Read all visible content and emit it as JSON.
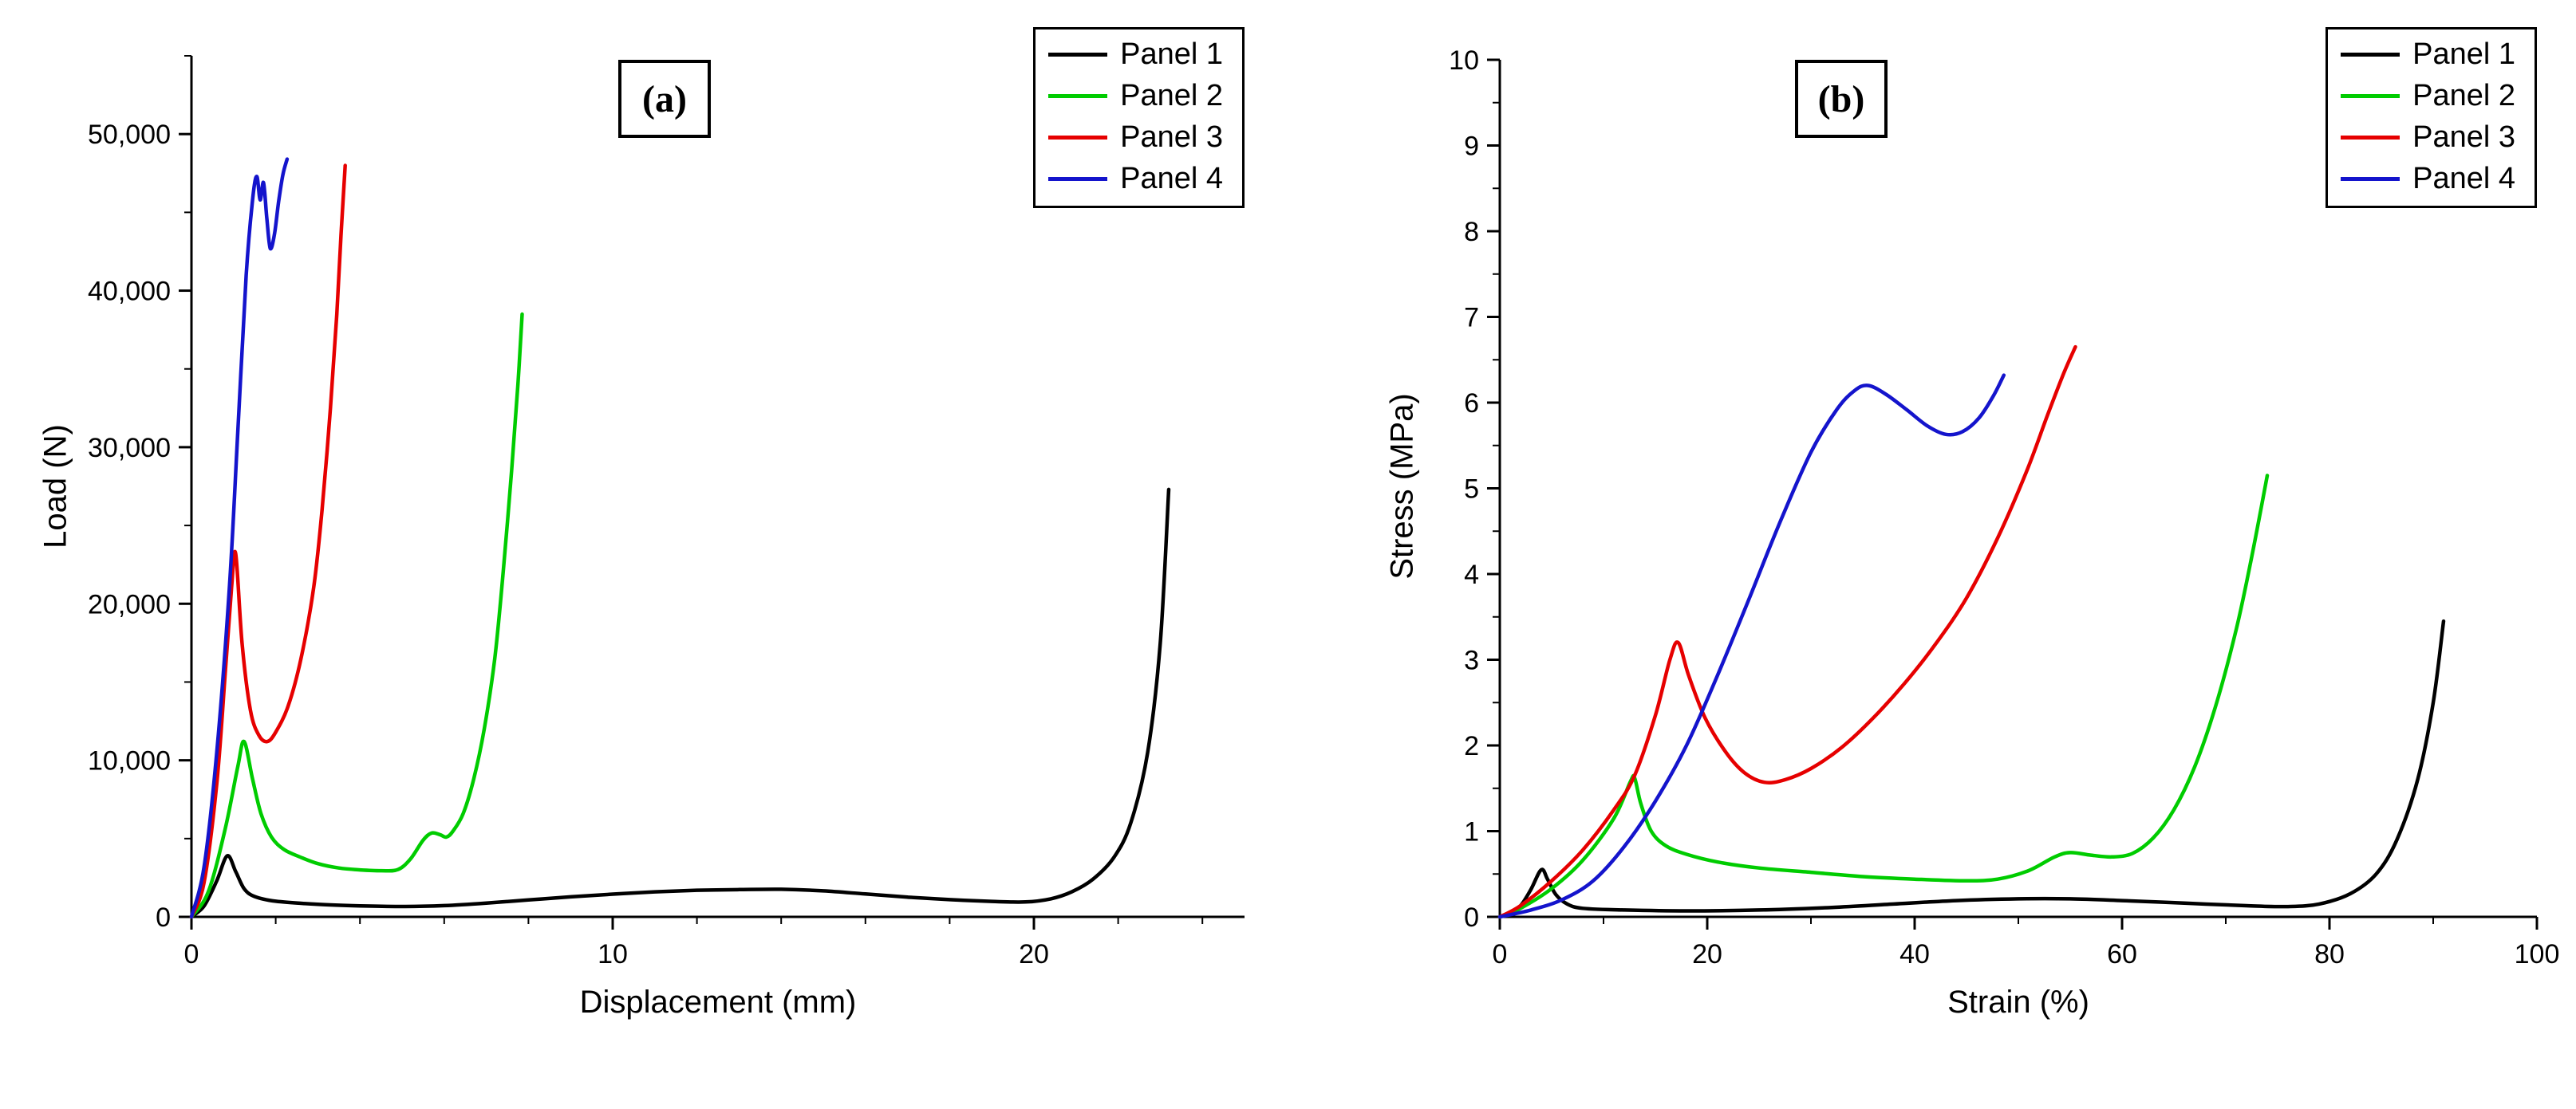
{
  "figure": {
    "background": "#ffffff",
    "axis_color": "#000000"
  },
  "chart_data": [
    {
      "id": "a",
      "panel_label": "(a)",
      "type": "line",
      "title": "",
      "xlabel": "Displacement (mm)",
      "ylabel": "Load (N)",
      "xlim": [
        0,
        25
      ],
      "ylim": [
        0,
        55000
      ],
      "xticks": [
        0,
        10,
        20
      ],
      "xtick_labels": [
        "0",
        "10",
        "20"
      ],
      "x_minor_step": 2,
      "yticks": [
        0,
        10000,
        20000,
        30000,
        40000,
        50000
      ],
      "ytick_labels": [
        "0",
        "10,000",
        "20,000",
        "30,000",
        "40,000",
        "50,000"
      ],
      "y_minor_step": 5000,
      "grid": false,
      "legend_position": "top-right",
      "legend_labels": [
        "Panel 1",
        "Panel 2",
        "Panel 3",
        "Panel 4"
      ],
      "series": [
        {
          "name": "Panel 1",
          "color": "#000000",
          "points": [
            [
              0,
              0
            ],
            [
              0.3,
              700
            ],
            [
              0.6,
              2300
            ],
            [
              0.85,
              3900
            ],
            [
              1.05,
              2900
            ],
            [
              1.25,
              1800
            ],
            [
              1.5,
              1300
            ],
            [
              2,
              1000
            ],
            [
              3,
              800
            ],
            [
              4,
              700
            ],
            [
              5,
              660
            ],
            [
              6,
              720
            ],
            [
              7,
              880
            ],
            [
              8,
              1080
            ],
            [
              9,
              1280
            ],
            [
              10,
              1450
            ],
            [
              11,
              1600
            ],
            [
              12,
              1700
            ],
            [
              13,
              1740
            ],
            [
              14,
              1760
            ],
            [
              15,
              1660
            ],
            [
              16,
              1460
            ],
            [
              17,
              1260
            ],
            [
              18,
              1100
            ],
            [
              19,
              990
            ],
            [
              19.8,
              950
            ],
            [
              20.4,
              1150
            ],
            [
              20.9,
              1600
            ],
            [
              21.4,
              2400
            ],
            [
              21.9,
              3800
            ],
            [
              22.3,
              6000
            ],
            [
              22.7,
              10500
            ],
            [
              23,
              17500
            ],
            [
              23.2,
              27300
            ]
          ]
        },
        {
          "name": "Panel 2",
          "color": "#00cc00",
          "points": [
            [
              0,
              0
            ],
            [
              0.4,
              1600
            ],
            [
              0.8,
              5600
            ],
            [
              1.1,
              9600
            ],
            [
              1.25,
              11200
            ],
            [
              1.45,
              8800
            ],
            [
              1.65,
              6600
            ],
            [
              1.9,
              5100
            ],
            [
              2.2,
              4300
            ],
            [
              2.6,
              3800
            ],
            [
              3,
              3400
            ],
            [
              3.5,
              3120
            ],
            [
              4,
              3000
            ],
            [
              4.5,
              2950
            ],
            [
              4.9,
              3020
            ],
            [
              5.2,
              3700
            ],
            [
              5.5,
              4900
            ],
            [
              5.7,
              5350
            ],
            [
              5.9,
              5250
            ],
            [
              6.05,
              5100
            ],
            [
              6.2,
              5450
            ],
            [
              6.45,
              6600
            ],
            [
              6.7,
              8800
            ],
            [
              6.95,
              12000
            ],
            [
              7.2,
              16500
            ],
            [
              7.4,
              22000
            ],
            [
              7.6,
              28500
            ],
            [
              7.75,
              34000
            ],
            [
              7.85,
              38500
            ]
          ]
        },
        {
          "name": "Panel 3",
          "color": "#e60000",
          "points": [
            [
              0,
              0
            ],
            [
              0.3,
              2200
            ],
            [
              0.6,
              8500
            ],
            [
              0.8,
              15500
            ],
            [
              0.95,
              21000
            ],
            [
              1.05,
              23200
            ],
            [
              1.2,
              17500
            ],
            [
              1.4,
              13200
            ],
            [
              1.6,
              11600
            ],
            [
              1.8,
              11200
            ],
            [
              2,
              11800
            ],
            [
              2.3,
              13500
            ],
            [
              2.6,
              16500
            ],
            [
              2.9,
              21000
            ],
            [
              3.1,
              26000
            ],
            [
              3.3,
              32500
            ],
            [
              3.45,
              38500
            ],
            [
              3.55,
              43500
            ],
            [
              3.65,
              48000
            ]
          ]
        },
        {
          "name": "Panel 4",
          "color": "#1414cc",
          "points": [
            [
              0,
              0
            ],
            [
              0.3,
              3200
            ],
            [
              0.6,
              10500
            ],
            [
              0.9,
              21000
            ],
            [
              1.1,
              31000
            ],
            [
              1.3,
              41000
            ],
            [
              1.45,
              45800
            ],
            [
              1.55,
              47300
            ],
            [
              1.63,
              45800
            ],
            [
              1.71,
              46900
            ],
            [
              1.79,
              44600
            ],
            [
              1.87,
              42700
            ],
            [
              1.97,
              43600
            ],
            [
              2.07,
              45700
            ],
            [
              2.17,
              47400
            ],
            [
              2.27,
              48400
            ]
          ]
        }
      ]
    },
    {
      "id": "b",
      "panel_label": "(b)",
      "type": "line",
      "title": "",
      "xlabel": "Strain (%)",
      "ylabel": "Stress (MPa)",
      "xlim": [
        0,
        100
      ],
      "ylim": [
        0,
        10
      ],
      "xticks": [
        0,
        20,
        40,
        60,
        80,
        100
      ],
      "xtick_labels": [
        "0",
        "20",
        "40",
        "60",
        "80",
        "100"
      ],
      "x_minor_step": 10,
      "yticks": [
        0,
        1,
        2,
        3,
        4,
        5,
        6,
        7,
        8,
        9,
        10
      ],
      "ytick_labels": [
        "0",
        "1",
        "2",
        "3",
        "4",
        "5",
        "6",
        "7",
        "8",
        "9",
        "10"
      ],
      "y_minor_step": 0.5,
      "grid": false,
      "legend_position": "top-right",
      "legend_labels": [
        "Panel 1",
        "Panel 2",
        "Panel 3",
        "Panel 4"
      ],
      "series": [
        {
          "name": "Panel 1",
          "color": "#000000",
          "points": [
            [
              0,
              0
            ],
            [
              1,
              0.05
            ],
            [
              2,
              0.13
            ],
            [
              3,
              0.32
            ],
            [
              4,
              0.55
            ],
            [
              4.6,
              0.44
            ],
            [
              5.4,
              0.26
            ],
            [
              6.5,
              0.15
            ],
            [
              8,
              0.1
            ],
            [
              12,
              0.08
            ],
            [
              18,
              0.07
            ],
            [
              25,
              0.08
            ],
            [
              32,
              0.11
            ],
            [
              38,
              0.15
            ],
            [
              44,
              0.19
            ],
            [
              50,
              0.21
            ],
            [
              55,
              0.21
            ],
            [
              60,
              0.19
            ],
            [
              66,
              0.16
            ],
            [
              72,
              0.13
            ],
            [
              76,
              0.12
            ],
            [
              79,
              0.15
            ],
            [
              82,
              0.27
            ],
            [
              84.5,
              0.5
            ],
            [
              86.5,
              0.9
            ],
            [
              88.5,
              1.6
            ],
            [
              90,
              2.5
            ],
            [
              91,
              3.45
            ]
          ]
        },
        {
          "name": "Panel 2",
          "color": "#00cc00",
          "points": [
            [
              0,
              0
            ],
            [
              2,
              0.1
            ],
            [
              5,
              0.33
            ],
            [
              8,
              0.66
            ],
            [
              11,
              1.15
            ],
            [
              12.6,
              1.58
            ],
            [
              13,
              1.62
            ],
            [
              13.6,
              1.32
            ],
            [
              14.6,
              1.0
            ],
            [
              16,
              0.83
            ],
            [
              18,
              0.73
            ],
            [
              21,
              0.64
            ],
            [
              25,
              0.57
            ],
            [
              30,
              0.52
            ],
            [
              35,
              0.47
            ],
            [
              40,
              0.44
            ],
            [
              45,
              0.42
            ],
            [
              48,
              0.44
            ],
            [
              51,
              0.54
            ],
            [
              53.5,
              0.7
            ],
            [
              55,
              0.75
            ],
            [
              57,
              0.72
            ],
            [
              59,
              0.7
            ],
            [
              61,
              0.74
            ],
            [
              63,
              0.92
            ],
            [
              65,
              1.25
            ],
            [
              67,
              1.75
            ],
            [
              69,
              2.45
            ],
            [
              71,
              3.35
            ],
            [
              72.5,
              4.2
            ],
            [
              74,
              5.15
            ]
          ]
        },
        {
          "name": "Panel 3",
          "color": "#e60000",
          "points": [
            [
              0,
              0
            ],
            [
              2,
              0.13
            ],
            [
              5,
              0.42
            ],
            [
              8,
              0.78
            ],
            [
              11,
              1.25
            ],
            [
              13,
              1.65
            ],
            [
              15,
              2.35
            ],
            [
              16.4,
              3.0
            ],
            [
              17.2,
              3.2
            ],
            [
              18.2,
              2.82
            ],
            [
              19.8,
              2.32
            ],
            [
              21.8,
              1.92
            ],
            [
              23.6,
              1.68
            ],
            [
              25.5,
              1.57
            ],
            [
              27.5,
              1.6
            ],
            [
              30,
              1.73
            ],
            [
              33,
              1.98
            ],
            [
              36,
              2.32
            ],
            [
              39,
              2.72
            ],
            [
              42,
              3.18
            ],
            [
              45,
              3.72
            ],
            [
              48,
              4.42
            ],
            [
              50.8,
              5.2
            ],
            [
              52.8,
              5.85
            ],
            [
              54.4,
              6.35
            ],
            [
              55.5,
              6.65
            ]
          ]
        },
        {
          "name": "Panel 4",
          "color": "#1414cc",
          "points": [
            [
              0,
              0
            ],
            [
              3,
              0.08
            ],
            [
              6,
              0.2
            ],
            [
              9,
              0.42
            ],
            [
              12,
              0.82
            ],
            [
              15,
              1.35
            ],
            [
              18,
              2.0
            ],
            [
              21,
              2.82
            ],
            [
              24,
              3.7
            ],
            [
              27,
              4.6
            ],
            [
              30,
              5.42
            ],
            [
              32.5,
              5.92
            ],
            [
              34.2,
              6.14
            ],
            [
              35.5,
              6.2
            ],
            [
              37.2,
              6.1
            ],
            [
              39.2,
              5.92
            ],
            [
              41.2,
              5.73
            ],
            [
              43,
              5.63
            ],
            [
              44.6,
              5.66
            ],
            [
              46.2,
              5.82
            ],
            [
              47.6,
              6.08
            ],
            [
              48.6,
              6.32
            ]
          ]
        }
      ]
    }
  ]
}
